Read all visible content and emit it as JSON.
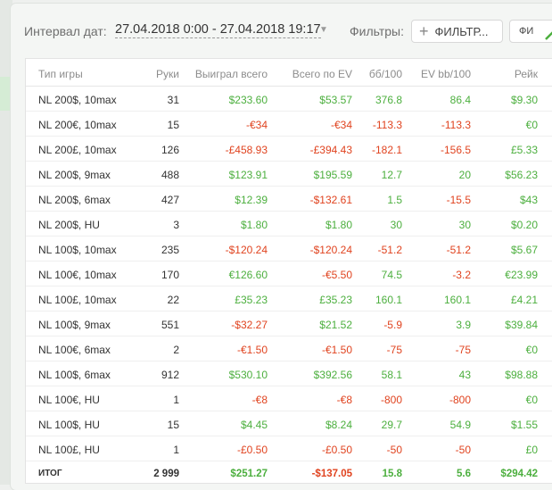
{
  "filter_bar": {
    "interval_label": "Интервал дат:",
    "date_range": "27.04.2018 0:00 - 27.04.2018 19:17",
    "filters_label": "Фильтры:",
    "add_filter_label": "ФИЛЬТР...",
    "second_button_label": "ФИ"
  },
  "table": {
    "headers": {
      "game": "Тип игры",
      "hands": "Руки",
      "won": "Выиграл всего",
      "ev": "Всего по EV",
      "bb": "бб/100",
      "evbb": "EV bb/100",
      "rake": "Рейк"
    },
    "rows": [
      {
        "game": "NL 200$, 10max",
        "hands": "31",
        "won": "$233.60",
        "ev": "$53.57",
        "bb": "376.8",
        "evbb": "86.4",
        "rake": "$9.30"
      },
      {
        "game": "NL 200€, 10max",
        "hands": "15",
        "won": "-€34",
        "ev": "-€34",
        "bb": "-113.3",
        "evbb": "-113.3",
        "rake": "€0"
      },
      {
        "game": "NL 200£, 10max",
        "hands": "126",
        "won": "-£458.93",
        "ev": "-£394.43",
        "bb": "-182.1",
        "evbb": "-156.5",
        "rake": "£5.33"
      },
      {
        "game": "NL 200$, 9max",
        "hands": "488",
        "won": "$123.91",
        "ev": "$195.59",
        "bb": "12.7",
        "evbb": "20",
        "rake": "$56.23"
      },
      {
        "game": "NL 200$, 6max",
        "hands": "427",
        "won": "$12.39",
        "ev": "-$132.61",
        "bb": "1.5",
        "evbb": "-15.5",
        "rake": "$43"
      },
      {
        "game": "NL 200$, HU",
        "hands": "3",
        "won": "$1.80",
        "ev": "$1.80",
        "bb": "30",
        "evbb": "30",
        "rake": "$0.20"
      },
      {
        "game": "NL 100$, 10max",
        "hands": "235",
        "won": "-$120.24",
        "ev": "-$120.24",
        "bb": "-51.2",
        "evbb": "-51.2",
        "rake": "$5.67"
      },
      {
        "game": "NL 100€, 10max",
        "hands": "170",
        "won": "€126.60",
        "ev": "-€5.50",
        "bb": "74.5",
        "evbb": "-3.2",
        "rake": "€23.99"
      },
      {
        "game": "NL 100£, 10max",
        "hands": "22",
        "won": "£35.23",
        "ev": "£35.23",
        "bb": "160.1",
        "evbb": "160.1",
        "rake": "£4.21"
      },
      {
        "game": "NL 100$, 9max",
        "hands": "551",
        "won": "-$32.27",
        "ev": "$21.52",
        "bb": "-5.9",
        "evbb": "3.9",
        "rake": "$39.84"
      },
      {
        "game": "NL 100€, 6max",
        "hands": "2",
        "won": "-€1.50",
        "ev": "-€1.50",
        "bb": "-75",
        "evbb": "-75",
        "rake": "€0"
      },
      {
        "game": "NL 100$, 6max",
        "hands": "912",
        "won": "$530.10",
        "ev": "$392.56",
        "bb": "58.1",
        "evbb": "43",
        "rake": "$98.88"
      },
      {
        "game": "NL 100€, HU",
        "hands": "1",
        "won": "-€8",
        "ev": "-€8",
        "bb": "-800",
        "evbb": "-800",
        "rake": "€0"
      },
      {
        "game": "NL 100$, HU",
        "hands": "15",
        "won": "$4.45",
        "ev": "$8.24",
        "bb": "29.7",
        "evbb": "54.9",
        "rake": "$1.55"
      },
      {
        "game": "NL 100£, HU",
        "hands": "1",
        "won": "-£0.50",
        "ev": "-£0.50",
        "bb": "-50",
        "evbb": "-50",
        "rake": "£0"
      }
    ],
    "total": {
      "game": "ИТОГ",
      "hands": "2 999",
      "won": "$251.27",
      "ev": "-$137.05",
      "bb": "15.8",
      "evbb": "5.6",
      "rake": "$294.42"
    }
  },
  "colors": {
    "positive": "#4caf3e",
    "negative": "#e0431f",
    "accent_green": "#4caf3e"
  },
  "icons": {
    "add_filter": "plus-icon",
    "date_dropdown": "caret-down-icon",
    "corner": "chart-line-icon"
  }
}
